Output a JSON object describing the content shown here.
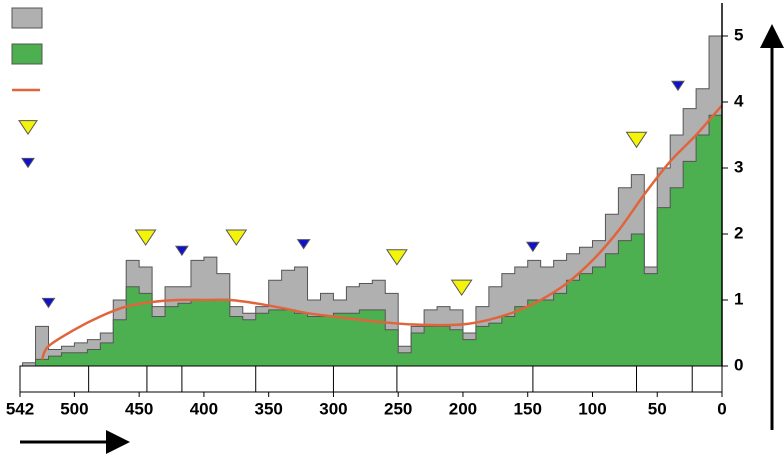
{
  "chart_data": {
    "type": "area",
    "xlim": [
      542,
      0
    ],
    "ylim": [
      0,
      5.5
    ],
    "xticks": [
      542,
      500,
      450,
      400,
      350,
      300,
      250,
      200,
      150,
      100,
      50,
      0
    ],
    "yticks": [
      0,
      1,
      2,
      3,
      4,
      5
    ],
    "segments": [
      542,
      489,
      444,
      417,
      360,
      300,
      251,
      146,
      66,
      23,
      0
    ],
    "series": [
      {
        "style": "step-area",
        "color": "#b0b0b0",
        "x": [
          542,
          540,
          530,
          520,
          510,
          500,
          490,
          480,
          470,
          460,
          450,
          440,
          430,
          420,
          410,
          400,
          390,
          380,
          370,
          360,
          350,
          340,
          330,
          320,
          310,
          300,
          290,
          280,
          270,
          260,
          250,
          240,
          230,
          220,
          210,
          200,
          190,
          180,
          170,
          160,
          150,
          140,
          130,
          120,
          110,
          100,
          90,
          80,
          70,
          60,
          50,
          40,
          30,
          20,
          10,
          0
        ],
        "values": [
          0,
          0.05,
          0.6,
          0.25,
          0.3,
          0.35,
          0.4,
          0.5,
          1.0,
          1.6,
          1.5,
          0.9,
          1.2,
          1.2,
          1.6,
          1.65,
          1.4,
          0.9,
          0.8,
          0.9,
          1.3,
          1.45,
          1.5,
          1.0,
          1.1,
          1.0,
          1.2,
          1.25,
          1.3,
          1.1,
          0.3,
          0.6,
          0.85,
          0.9,
          0.85,
          0.5,
          0.9,
          1.2,
          1.4,
          1.5,
          1.6,
          1.5,
          1.6,
          1.7,
          1.8,
          1.9,
          2.3,
          2.7,
          2.9,
          1.5,
          3.0,
          3.5,
          3.9,
          4.2,
          5.0,
          5.4
        ]
      },
      {
        "style": "step-area",
        "color": "#4caf50",
        "x": [
          542,
          540,
          530,
          520,
          510,
          500,
          490,
          480,
          470,
          460,
          450,
          440,
          430,
          420,
          410,
          400,
          390,
          380,
          370,
          360,
          350,
          340,
          330,
          320,
          310,
          300,
          290,
          280,
          270,
          260,
          250,
          240,
          230,
          220,
          210,
          200,
          190,
          180,
          170,
          160,
          150,
          140,
          130,
          120,
          110,
          100,
          90,
          80,
          70,
          60,
          50,
          40,
          30,
          20,
          10,
          0
        ],
        "values": [
          0,
          0,
          0.1,
          0.15,
          0.2,
          0.2,
          0.25,
          0.35,
          0.7,
          1.2,
          1.1,
          0.75,
          0.9,
          0.95,
          1.0,
          1.0,
          1.0,
          0.75,
          0.7,
          0.8,
          0.85,
          0.85,
          0.8,
          0.75,
          0.75,
          0.8,
          0.8,
          0.85,
          0.85,
          0.55,
          0.2,
          0.5,
          0.6,
          0.6,
          0.55,
          0.4,
          0.6,
          0.65,
          0.75,
          0.9,
          1.0,
          1.0,
          1.1,
          1.3,
          1.4,
          1.5,
          1.7,
          1.9,
          2.0,
          1.4,
          2.4,
          2.7,
          3.1,
          3.5,
          3.8,
          4.2
        ]
      },
      {
        "style": "line",
        "color": "#e0643c",
        "x": [
          525,
          520,
          500,
          480,
          460,
          440,
          420,
          400,
          380,
          360,
          340,
          320,
          300,
          280,
          260,
          240,
          220,
          200,
          180,
          160,
          140,
          120,
          100,
          80,
          60,
          40,
          20,
          0
        ],
        "values": [
          0.1,
          0.3,
          0.55,
          0.75,
          0.9,
          0.97,
          1.0,
          1.0,
          1.0,
          0.95,
          0.88,
          0.8,
          0.75,
          0.7,
          0.66,
          0.63,
          0.62,
          0.63,
          0.7,
          0.82,
          1.0,
          1.25,
          1.6,
          2.05,
          2.6,
          3.1,
          3.5,
          3.95
        ]
      },
      {
        "style": "marker",
        "color": "#f4f40a",
        "size": "large",
        "x": [
          445,
          375,
          251,
          201,
          66
        ],
        "values": [
          1.97,
          1.97,
          1.67,
          1.21,
          3.45
        ]
      },
      {
        "style": "marker",
        "color": "#1010d0",
        "size": "small",
        "x": [
          520,
          417,
          323,
          146,
          34
        ],
        "values": [
          0.97,
          1.76,
          1.86,
          1.82,
          4.26
        ]
      }
    ]
  }
}
